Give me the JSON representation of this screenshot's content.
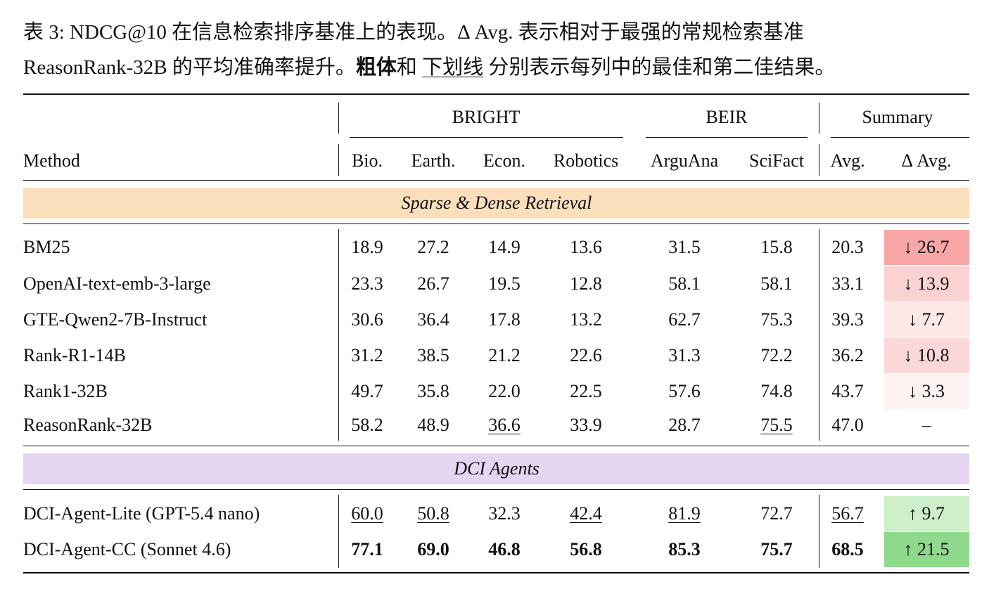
{
  "caption": {
    "line1": "表 3: NDCG@10 在信息检索排序基准上的表现。Δ Avg. 表示相对于最强的常规检索基准",
    "line2": "ReasonRank-32B 的平均准确率提升。",
    "bold": "粗体",
    "and": "和",
    "underline": "下划线",
    "rest": "分别表示每列中的最佳和第二佳结果。"
  },
  "table": {
    "groups": [
      "BRIGHT",
      "BEIR",
      "Summary"
    ],
    "columns": [
      "Method",
      "Bio.",
      "Earth.",
      "Econ.",
      "Robotics",
      "ArguAna",
      "SciFact",
      "Avg.",
      "Δ Avg."
    ],
    "sections": [
      {
        "title": "Sparse & Dense Retrieval",
        "rows": [
          [
            "BM25",
            "18.9",
            "27.2",
            "14.9",
            "13.6",
            "31.5",
            "15.8",
            "20.3",
            "↓ 26.7"
          ],
          [
            "OpenAI-text-emb-3-large",
            "23.3",
            "26.7",
            "19.5",
            "12.8",
            "58.1",
            "58.1",
            "33.1",
            "↓ 13.9"
          ],
          [
            "GTE-Qwen2-7B-Instruct",
            "30.6",
            "36.4",
            "17.8",
            "13.2",
            "62.7",
            "75.3",
            "39.3",
            "↓ 7.7"
          ],
          [
            "Rank-R1-14B",
            "31.2",
            "38.5",
            "21.2",
            "22.6",
            "31.3",
            "72.2",
            "36.2",
            "↓ 10.8"
          ],
          [
            "Rank1-32B",
            "49.7",
            "35.8",
            "22.0",
            "22.5",
            "57.6",
            "74.8",
            "43.7",
            "↓ 3.3"
          ],
          [
            "ReasonRank-32B",
            "58.2",
            "48.9",
            "36.6",
            "33.9",
            "28.7",
            "75.5",
            "47.0",
            "–"
          ]
        ]
      },
      {
        "title": "DCI Agents",
        "rows": [
          [
            "DCI-Agent-Lite (GPT-5.4 nano)",
            "60.0",
            "50.8",
            "32.3",
            "42.4",
            "81.9",
            "72.7",
            "56.7",
            "↑ 9.7"
          ],
          [
            "DCI-Agent-CC (Sonnet 4.6)",
            "77.1",
            "69.0",
            "46.8",
            "56.8",
            "85.3",
            "75.7",
            "68.5",
            "↑ 21.5"
          ]
        ]
      }
    ]
  }
}
